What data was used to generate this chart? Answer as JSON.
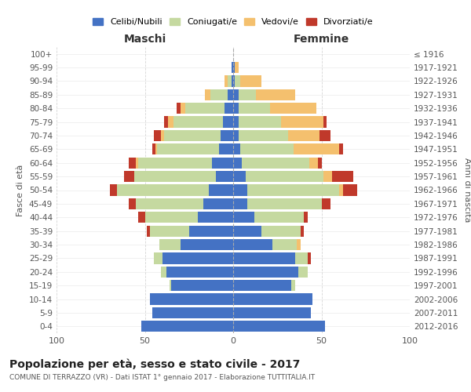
{
  "age_groups": [
    "0-4",
    "5-9",
    "10-14",
    "15-19",
    "20-24",
    "25-29",
    "30-34",
    "35-39",
    "40-44",
    "45-49",
    "50-54",
    "55-59",
    "60-64",
    "65-69",
    "70-74",
    "75-79",
    "80-84",
    "85-89",
    "90-94",
    "95-99",
    "100+"
  ],
  "birth_years": [
    "2012-2016",
    "2007-2011",
    "2002-2006",
    "1997-2001",
    "1992-1996",
    "1987-1991",
    "1982-1986",
    "1977-1981",
    "1972-1976",
    "1967-1971",
    "1962-1966",
    "1957-1961",
    "1952-1956",
    "1947-1951",
    "1942-1946",
    "1937-1941",
    "1932-1936",
    "1927-1931",
    "1922-1926",
    "1917-1921",
    "≤ 1916"
  ],
  "colors": {
    "celibe": "#4472c4",
    "coniugato": "#c5d9a0",
    "vedovo": "#f4c06e",
    "divorziato": "#c0392b"
  },
  "maschi": {
    "celibe": [
      52,
      46,
      47,
      35,
      38,
      40,
      30,
      25,
      20,
      17,
      14,
      10,
      12,
      8,
      7,
      6,
      5,
      3,
      1,
      1,
      0
    ],
    "coniugato": [
      0,
      0,
      0,
      1,
      3,
      5,
      12,
      22,
      30,
      38,
      52,
      46,
      42,
      35,
      32,
      28,
      22,
      10,
      2,
      0,
      0
    ],
    "vedovo": [
      0,
      0,
      0,
      0,
      0,
      0,
      0,
      0,
      0,
      0,
      0,
      0,
      1,
      1,
      2,
      3,
      3,
      3,
      2,
      0,
      0
    ],
    "divorziato": [
      0,
      0,
      0,
      0,
      0,
      0,
      0,
      2,
      4,
      4,
      4,
      6,
      4,
      2,
      4,
      2,
      2,
      0,
      0,
      0,
      0
    ]
  },
  "femmine": {
    "nubile": [
      52,
      44,
      45,
      33,
      37,
      35,
      22,
      16,
      12,
      8,
      8,
      7,
      5,
      4,
      3,
      3,
      3,
      3,
      1,
      1,
      0
    ],
    "coniugata": [
      0,
      0,
      0,
      2,
      5,
      7,
      14,
      22,
      28,
      42,
      52,
      44,
      38,
      30,
      28,
      24,
      18,
      10,
      3,
      0,
      0
    ],
    "vedova": [
      0,
      0,
      0,
      0,
      0,
      0,
      2,
      0,
      0,
      0,
      2,
      5,
      5,
      26,
      18,
      24,
      26,
      22,
      12,
      2,
      0
    ],
    "divorziata": [
      0,
      0,
      0,
      0,
      0,
      2,
      0,
      2,
      2,
      5,
      8,
      12,
      2,
      2,
      6,
      2,
      0,
      0,
      0,
      0,
      0
    ]
  },
  "xlim": 100,
  "title": "Popolazione per età, sesso e stato civile - 2017",
  "subtitle": "COMUNE DI TERRAZZO (VR) - Dati ISTAT 1° gennaio 2017 - Elaborazione TUTTITALIA.IT",
  "ylabel_left": "Fasce di età",
  "ylabel_right": "Anni di nascita",
  "xlabel_left": "Maschi",
  "xlabel_right": "Femmine",
  "legend_labels": [
    "Celibi/Nubili",
    "Coniugati/e",
    "Vedovi/e",
    "Divorziati/e"
  ],
  "bg_color": "#ffffff",
  "grid_color": "#cccccc"
}
